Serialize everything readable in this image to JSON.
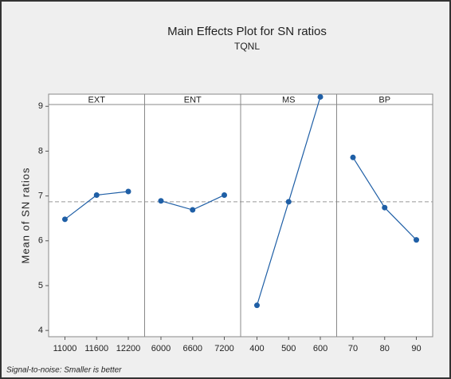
{
  "chart_data": {
    "type": "line",
    "title": "Main Effects Plot for SN ratios",
    "subtitle": "TQNL",
    "ylabel": "Mean of SN ratios",
    "footnote": "Signal-to-noise: Smaller is better",
    "ylim": [
      3.86,
      9.04
    ],
    "yticks": [
      4,
      5,
      6,
      7,
      8,
      9
    ],
    "reference_line": 6.87,
    "color": "#1f5fa6",
    "panels": [
      {
        "name": "EXT",
        "categories": [
          "11000",
          "11600",
          "12200"
        ],
        "values": [
          6.48,
          7.02,
          7.1
        ]
      },
      {
        "name": "ENT",
        "categories": [
          "6000",
          "6600",
          "7200"
        ],
        "values": [
          6.89,
          6.69,
          7.02
        ]
      },
      {
        "name": "MS",
        "categories": [
          "400",
          "500",
          "600"
        ],
        "values": [
          4.56,
          6.87,
          9.21
        ]
      },
      {
        "name": "BP",
        "categories": [
          "70",
          "80",
          "90"
        ],
        "values": [
          7.86,
          6.74,
          6.02
        ]
      }
    ]
  }
}
